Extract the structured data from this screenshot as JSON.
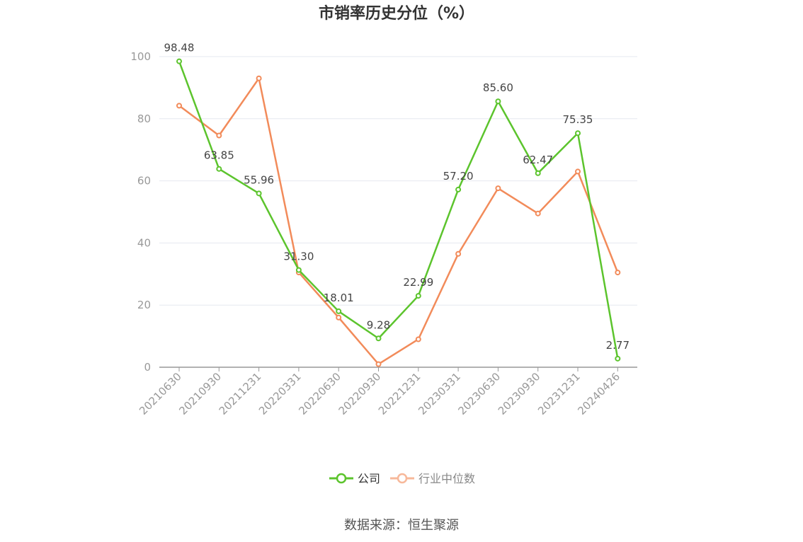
{
  "chart_data": {
    "type": "line",
    "title": "市销率历史分位（%）",
    "categories": [
      "20210630",
      "20210930",
      "20211231",
      "20220331",
      "20220630",
      "20220930",
      "20221231",
      "20230331",
      "20230630",
      "20230930",
      "20231231",
      "20240426"
    ],
    "series": [
      {
        "name": "公司",
        "color": "#5cc42d",
        "values": [
          98.48,
          63.85,
          55.96,
          31.3,
          18.01,
          9.28,
          22.99,
          57.2,
          85.6,
          62.47,
          75.35,
          2.77
        ],
        "labels": [
          "98.48",
          "63.85",
          "55.96",
          "31.30",
          "18.01",
          "9.28",
          "22.99",
          "57.20",
          "85.60",
          "62.47",
          "75.35",
          "2.77"
        ]
      },
      {
        "name": "行业中位数",
        "color": "#f28b5a",
        "values": [
          84.2,
          74.6,
          93.0,
          30.5,
          16.0,
          1.0,
          9.0,
          36.5,
          57.6,
          49.5,
          63.0,
          30.5
        ]
      }
    ],
    "ylim": [
      0,
      100
    ],
    "yticks": [
      "0",
      "20",
      "40",
      "60",
      "80",
      "100"
    ],
    "grid": true,
    "legend": "bottom"
  },
  "source_text": "数据来源：恒生聚源"
}
